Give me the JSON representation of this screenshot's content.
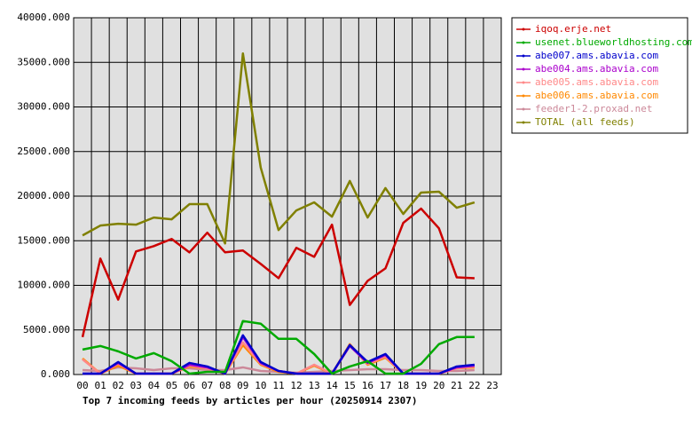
{
  "chart_data": {
    "type": "line",
    "title": "Top 7 incoming feeds by articles per hour (20250914 2307)",
    "categories": [
      "00",
      "01",
      "02",
      "03",
      "04",
      "05",
      "06",
      "07",
      "08",
      "09",
      "10",
      "11",
      "12",
      "13",
      "14",
      "15",
      "16",
      "17",
      "18",
      "19",
      "20",
      "21",
      "22",
      "23"
    ],
    "ylim": [
      0,
      40000
    ],
    "yticks": [
      {
        "value": 0,
        "label": "0.000"
      },
      {
        "value": 5000,
        "label": "5000.000"
      },
      {
        "value": 10000,
        "label": "10000.000"
      },
      {
        "value": 15000,
        "label": "15000.000"
      },
      {
        "value": 20000,
        "label": "20000.000"
      },
      {
        "value": 25000,
        "label": "25000.000"
      },
      {
        "value": 30000,
        "label": "30000.000"
      },
      {
        "value": 35000,
        "label": "35000.000"
      },
      {
        "value": 40000,
        "label": "40000.000"
      }
    ],
    "grid": true,
    "legend": "right",
    "series": [
      {
        "name": "iqoq.erje.net",
        "color": "#cc0000",
        "values": [
          4200,
          13000,
          8400,
          13800,
          14400,
          15200,
          13700,
          15900,
          13700,
          13900,
          12400,
          10800,
          14200,
          13200,
          16800,
          7800,
          10500,
          11900,
          17000,
          18600,
          16400,
          10900,
          10800,
          null
        ]
      },
      {
        "name": "usenet.blueworldhosting.com",
        "color": "#00aa00",
        "values": [
          2800,
          3200,
          2600,
          1800,
          2400,
          1500,
          100,
          300,
          300,
          6000,
          5700,
          4000,
          4000,
          2300,
          100,
          900,
          1500,
          100,
          100,
          1200,
          3400,
          4200,
          4200,
          null
        ]
      },
      {
        "name": "abe007.ams.abavia.com",
        "color": "#0000cc",
        "values": [
          100,
          100,
          1400,
          100,
          100,
          100,
          1300,
          900,
          100,
          4400,
          1400,
          400,
          100,
          100,
          100,
          3300,
          1400,
          2300,
          100,
          100,
          100,
          900,
          1100,
          null
        ]
      },
      {
        "name": "abe004.ams.abavia.com",
        "color": "#aa00cc",
        "values": [
          100,
          100,
          1300,
          100,
          100,
          100,
          1100,
          800,
          100,
          4200,
          1300,
          400,
          100,
          100,
          100,
          3200,
          1300,
          2200,
          100,
          100,
          100,
          800,
          1000,
          null
        ]
      },
      {
        "name": "abe005.ams.abavia.com",
        "color": "#ff8888",
        "values": [
          1700,
          100,
          1200,
          100,
          100,
          100,
          1000,
          700,
          100,
          3600,
          1200,
          400,
          100,
          1100,
          100,
          3300,
          1200,
          2000,
          100,
          100,
          100,
          700,
          900,
          null
        ]
      },
      {
        "name": "abe006.ams.abavia.com",
        "color": "#ff8800",
        "values": [
          1800,
          100,
          1000,
          100,
          100,
          100,
          900,
          700,
          100,
          3300,
          1100,
          300,
          100,
          1000,
          100,
          3400,
          1100,
          1900,
          100,
          100,
          100,
          700,
          800,
          null
        ]
      },
      {
        "name": "feeder1-2.proxad.net",
        "color": "#cc8899",
        "values": [
          500,
          400,
          800,
          700,
          500,
          700,
          700,
          500,
          500,
          800,
          400,
          300,
          200,
          300,
          400,
          500,
          600,
          600,
          500,
          500,
          400,
          400,
          500,
          null
        ]
      },
      {
        "name": "TOTAL (all feeds)",
        "color": "#808000",
        "values": [
          15600,
          16700,
          16900,
          16800,
          17600,
          17400,
          19100,
          19100,
          14700,
          36000,
          23200,
          16200,
          18400,
          19300,
          17700,
          21700,
          17600,
          20900,
          18000,
          20400,
          20500,
          18700,
          19300,
          null
        ]
      }
    ]
  }
}
